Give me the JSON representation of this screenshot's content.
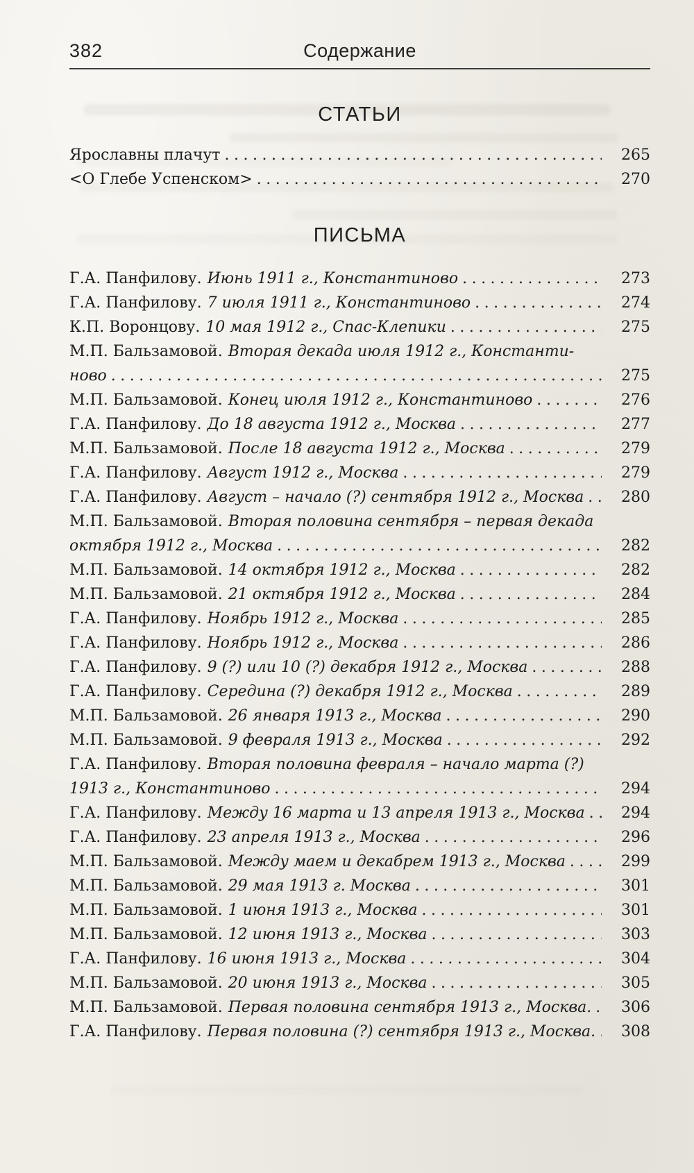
{
  "page": {
    "number": "382",
    "running_title": "Содержание"
  },
  "sections": [
    {
      "heading": "СТАТЬИ",
      "entries": [
        {
          "name": "Ярославны плачут",
          "page": "265"
        },
        {
          "name": "<О Глебе Успенском>",
          "page": "270"
        }
      ]
    },
    {
      "heading": "ПИСЬМА",
      "entries": [
        {
          "name": "Г.А. Панфилову.",
          "detail": "Июнь 1911 г., Константиново",
          "page": "273"
        },
        {
          "name": "Г.А. Панфилову.",
          "detail": "7 июля 1911 г., Константиново",
          "page": "274"
        },
        {
          "name": "К.П. Воронцову.",
          "detail": "10 мая 1912 г., Спас-Клепики",
          "page": "275"
        },
        {
          "name": "М.П. Бальзамовой.",
          "detail": "Вторая декада июля 1912 г., Константи-",
          "detail2": "ново",
          "page": "275"
        },
        {
          "name": "М.П. Бальзамовой.",
          "detail": "Конец июля 1912 г., Константиново",
          "page": "276"
        },
        {
          "name": "Г.А. Панфилову.",
          "detail": "До 18 августа 1912 г., Москва",
          "page": "277"
        },
        {
          "name": "М.П. Бальзамовой.",
          "detail": "После 18 августа 1912 г., Москва",
          "page": "279"
        },
        {
          "name": "Г.А. Панфилову.",
          "detail": "Август 1912 г., Москва",
          "page": "279"
        },
        {
          "name": "Г.А. Панфилову.",
          "detail": "Август – начало (?) сентября 1912 г., Москва",
          "page": "280"
        },
        {
          "name": "М.П. Бальзамовой.",
          "detail": "Вторая половина сентября – первая декада",
          "detail2": "октября 1912 г., Москва",
          "page": "282"
        },
        {
          "name": "М.П. Бальзамовой.",
          "detail": "14 октября 1912 г., Москва",
          "page": "282"
        },
        {
          "name": "М.П. Бальзамовой.",
          "detail": "21 октября 1912 г., Москва",
          "page": "284"
        },
        {
          "name": "Г.А. Панфилову.",
          "detail": "Ноябрь 1912 г., Москва",
          "page": "285"
        },
        {
          "name": "Г.А. Панфилову.",
          "detail": "Ноябрь 1912 г., Москва",
          "page": "286"
        },
        {
          "name": "Г.А. Панфилову.",
          "detail": "9 (?) или 10 (?) декабря 1912 г., Москва",
          "page": "288"
        },
        {
          "name": "Г.А. Панфилову.",
          "detail": "Середина (?) декабря 1912 г., Москва",
          "page": "289"
        },
        {
          "name": "М.П. Бальзамовой.",
          "detail": "26 января 1913 г., Москва",
          "page": "290"
        },
        {
          "name": "М.П. Бальзамовой.",
          "detail": "9 февраля 1913 г., Москва",
          "page": "292"
        },
        {
          "name": "Г.А. Панфилову.",
          "detail": "Вторая половина февраля – начало марта (?)",
          "detail2": "1913 г., Константиново",
          "page": "294"
        },
        {
          "name": "Г.А. Панфилову.",
          "detail": "Между 16 марта и 13 апреля 1913 г., Москва",
          "page": "294"
        },
        {
          "name": "Г.А. Панфилову.",
          "detail": "23 апреля 1913 г., Москва",
          "page": "296"
        },
        {
          "name": "М.П. Бальзамовой.",
          "detail": "Между маем и декабрем 1913 г., Москва",
          "page": "299"
        },
        {
          "name": "М.П. Бальзамовой.",
          "detail": "29 мая 1913 г. Москва",
          "page": "301"
        },
        {
          "name": "М.П. Бальзамовой.",
          "detail": "1 июня 1913 г., Москва",
          "page": "301"
        },
        {
          "name": "М.П. Бальзамовой.",
          "detail": "12 июня 1913 г., Москва",
          "page": "303"
        },
        {
          "name": "Г.А. Панфилову.",
          "detail": "16 июня 1913 г., Москва",
          "page": "304"
        },
        {
          "name": "М.П. Бальзамовой.",
          "detail": "20 июня 1913 г., Москва",
          "page": "305"
        },
        {
          "name": "М.П. Бальзамовой.",
          "detail": "Первая половина сентября 1913 г., Москва.",
          "page": "306"
        },
        {
          "name": "Г.А. Панфилову.",
          "detail": "Первая половина (?) сентября 1913 г., Москва.",
          "page": "308"
        }
      ]
    }
  ]
}
